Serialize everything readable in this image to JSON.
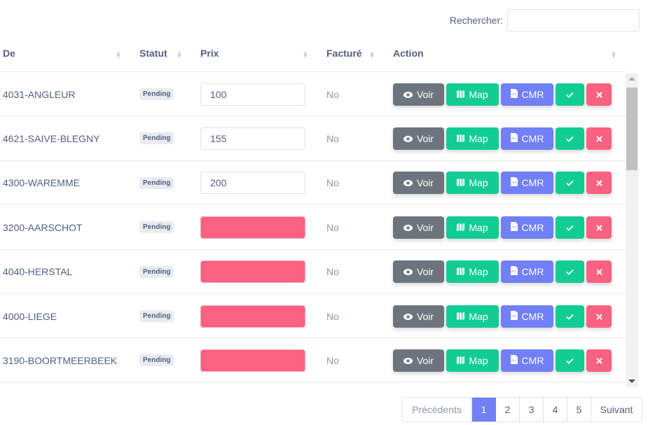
{
  "search": {
    "label": "Rechercher:",
    "value": ""
  },
  "columns": [
    "De",
    "Statut",
    "Prix",
    "Facturé",
    "Action"
  ],
  "rows": [
    {
      "city": "4031-ANGLEUR",
      "status": "Pending",
      "price": "100",
      "invoiced": "No"
    },
    {
      "city": "4621-SAIVE-BLEGNY",
      "status": "Pending",
      "price": "155",
      "invoiced": "No"
    },
    {
      "city": "4300-WAREMME",
      "status": "Pending",
      "price": "200",
      "invoiced": "No"
    },
    {
      "city": "3200-AARSCHOT",
      "status": "Pending",
      "price": "",
      "invoiced": "No"
    },
    {
      "city": "4040-HERSTAL",
      "status": "Pending",
      "price": "",
      "invoiced": "No"
    },
    {
      "city": "4000-LIEGE",
      "status": "Pending",
      "price": "",
      "invoiced": "No"
    },
    {
      "city": "3190-BOORTMEERBEEK",
      "status": "Pending",
      "price": "",
      "invoiced": "No"
    }
  ],
  "actions": {
    "voir": "Voir",
    "map": "Map",
    "cmr": "CMR"
  },
  "pagination": {
    "prev": "Précédents",
    "pages": [
      "1",
      "2",
      "3",
      "4",
      "5"
    ],
    "active": "1",
    "next": "Suivant"
  },
  "colors": {
    "voir": "#6c757d",
    "map": "#11cd94",
    "cmr": "#7180f4",
    "success": "#11cd94",
    "danger": "#fb6181"
  }
}
